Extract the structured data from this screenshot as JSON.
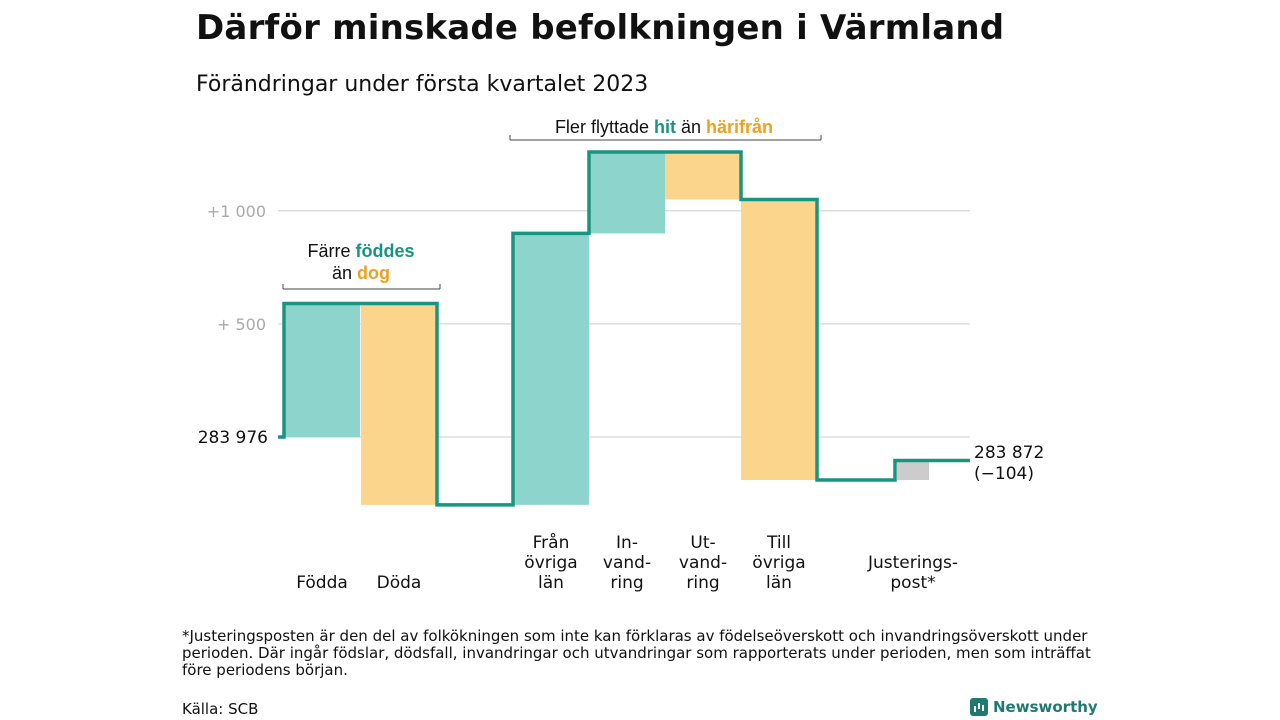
{
  "title": "Därför minskade befolkningen i Värmland",
  "subtitle": "Förändringar under första kvartalet 2023",
  "footnote": "*Justeringsposten är den del av folkökningen som inte kan förklaras av födelseöverskott och invandringsöverskott under perioden. Där ingår födslar, dödsfall, invandringar och utvandringar som rapporterats under perioden, men som inträffat före periodens början.",
  "source": "Källa: SCB",
  "brand": "Newsworthy",
  "colors": {
    "increase": "#8dd4cc",
    "decrease": "#fcd58d",
    "adjustment": "#cccccc",
    "line": "#1a9482",
    "teal_text": "#1a9482",
    "orange_text": "#f0a01e",
    "grid": "#dddddd"
  },
  "chart_data": {
    "type": "waterfall",
    "unit": "persons",
    "start_value": 283976,
    "start_label": "283 976",
    "end_value": 283872,
    "end_label": "283 872",
    "end_change_label": "(−104)",
    "y_ticks": [
      {
        "value": 500,
        "label": "+ 500"
      },
      {
        "value": 1000,
        "label": "+1 000"
      }
    ],
    "steps": [
      {
        "label_lines": [
          "Födda"
        ],
        "change": 590,
        "kind": "increase"
      },
      {
        "label_lines": [
          "Döda"
        ],
        "change": -890,
        "kind": "decrease"
      },
      {
        "label_lines": [
          "Från",
          "övriga",
          "län"
        ],
        "change": 1200,
        "kind": "increase"
      },
      {
        "label_lines": [
          "In-",
          "vand-",
          "ring"
        ],
        "change": 360,
        "kind": "increase"
      },
      {
        "label_lines": [
          "Ut-",
          "vand-",
          "ring"
        ],
        "change": -210,
        "kind": "decrease"
      },
      {
        "label_lines": [
          "Till",
          "övriga",
          "län"
        ],
        "change": -1240,
        "kind": "decrease"
      },
      {
        "label_lines": [
          "Justerings-",
          "post*"
        ],
        "change": 86,
        "kind": "adjustment"
      }
    ],
    "annotations": [
      {
        "parts": [
          {
            "text": "Färre ",
            "style": "plain"
          },
          {
            "text": "föddes",
            "style": "teal"
          }
        ],
        "parts2": [
          {
            "text": "än ",
            "style": "plain"
          },
          {
            "text": "dog",
            "style": "orange"
          }
        ],
        "span": [
          0,
          1
        ]
      },
      {
        "parts": [
          {
            "text": "Fler flyttade ",
            "style": "plain"
          },
          {
            "text": "hit",
            "style": "teal"
          },
          {
            "text": " än ",
            "style": "plain"
          },
          {
            "text": "härifrån",
            "style": "orange"
          }
        ],
        "span": [
          2,
          5
        ]
      }
    ]
  }
}
